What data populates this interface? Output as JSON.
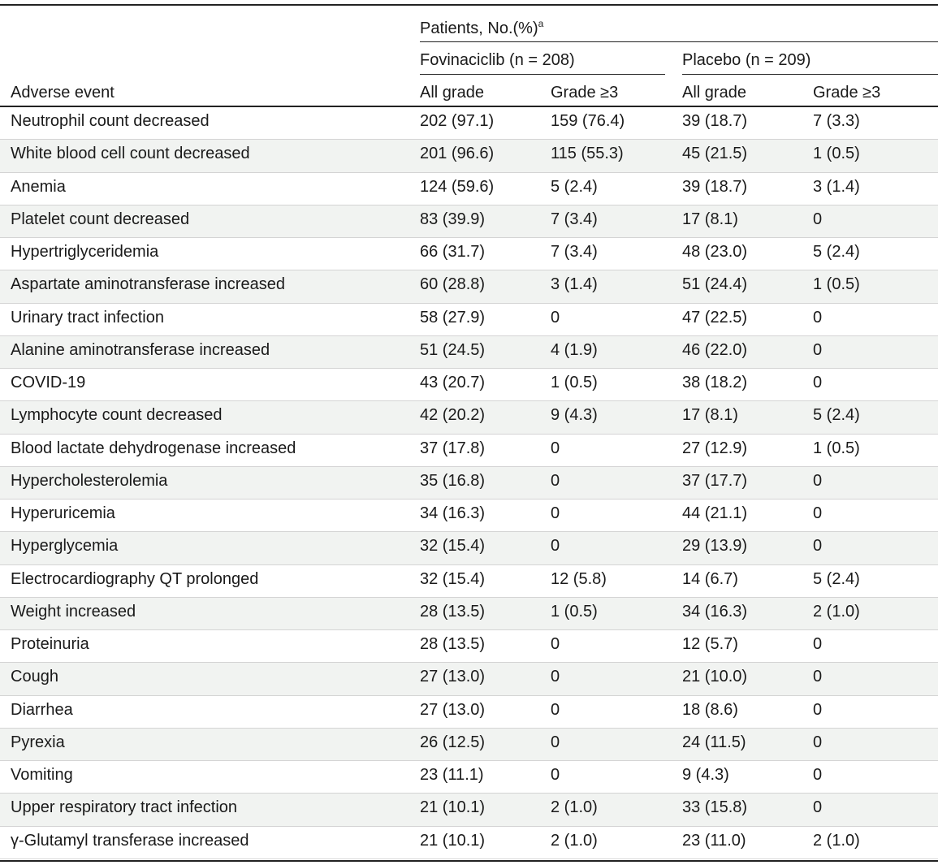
{
  "header": {
    "group_label": "Patients, No.(%)",
    "group_footnote": "a",
    "arm1_label": "Fovinaciclib (n = 208)",
    "arm2_label": "Placebo (n = 209)",
    "rowhead_label": "Adverse event",
    "col_all_grade_1": "All grade",
    "col_grade3_1": "Grade ≥3",
    "col_all_grade_2": "All grade",
    "col_grade3_2": "Grade ≥3"
  },
  "rows": [
    [
      "Neutrophil count decreased",
      "202 (97.1)",
      "159 (76.4)",
      "39 (18.7)",
      "7 (3.3)"
    ],
    [
      "White blood cell count decreased",
      "201 (96.6)",
      "115 (55.3)",
      "45 (21.5)",
      "1 (0.5)"
    ],
    [
      "Anemia",
      "124 (59.6)",
      "5 (2.4)",
      "39 (18.7)",
      "3 (1.4)"
    ],
    [
      "Platelet count decreased",
      "83 (39.9)",
      "7 (3.4)",
      "17 (8.1)",
      "0"
    ],
    [
      "Hypertriglyceridemia",
      "66 (31.7)",
      "7 (3.4)",
      "48 (23.0)",
      "5 (2.4)"
    ],
    [
      "Aspartate aminotransferase increased",
      "60 (28.8)",
      "3 (1.4)",
      "51 (24.4)",
      "1 (0.5)"
    ],
    [
      "Urinary tract infection",
      "58 (27.9)",
      "0",
      "47 (22.5)",
      "0"
    ],
    [
      "Alanine aminotransferase increased",
      "51 (24.5)",
      "4 (1.9)",
      "46 (22.0)",
      "0"
    ],
    [
      "COVID-19",
      "43 (20.7)",
      "1 (0.5)",
      "38 (18.2)",
      "0"
    ],
    [
      "Lymphocyte count decreased",
      "42 (20.2)",
      "9 (4.3)",
      "17 (8.1)",
      "5 (2.4)"
    ],
    [
      "Blood lactate dehydrogenase increased",
      "37 (17.8)",
      "0",
      "27 (12.9)",
      "1 (0.5)"
    ],
    [
      "Hypercholesterolemia",
      "35 (16.8)",
      "0",
      "37 (17.7)",
      "0"
    ],
    [
      "Hyperuricemia",
      "34 (16.3)",
      "0",
      "44 (21.1)",
      "0"
    ],
    [
      "Hyperglycemia",
      "32 (15.4)",
      "0",
      "29 (13.9)",
      "0"
    ],
    [
      "Electrocardiography QT prolonged",
      "32 (15.4)",
      "12 (5.8)",
      "14 (6.7)",
      "5 (2.4)"
    ],
    [
      "Weight increased",
      "28 (13.5)",
      "1 (0.5)",
      "34 (16.3)",
      "2 (1.0)"
    ],
    [
      "Proteinuria",
      "28 (13.5)",
      "0",
      "12 (5.7)",
      "0"
    ],
    [
      "Cough",
      "27 (13.0)",
      "0",
      "21 (10.0)",
      "0"
    ],
    [
      "Diarrhea",
      "27 (13.0)",
      "0",
      "18 (8.6)",
      "0"
    ],
    [
      "Pyrexia",
      "26 (12.5)",
      "0",
      "24 (11.5)",
      "0"
    ],
    [
      "Vomiting",
      "23 (11.1)",
      "0",
      "9 (4.3)",
      "0"
    ],
    [
      "Upper respiratory tract infection",
      "21 (10.1)",
      "2 (1.0)",
      "33 (15.8)",
      "0"
    ],
    [
      "γ-Glutamyl transferase increased",
      "21 (10.1)",
      "2 (1.0)",
      "23 (11.0)",
      "2 (1.0)"
    ]
  ],
  "colors": {
    "alt_row": "#f1f3f1",
    "rule": "#222222",
    "row_divider": "#d4d4d4"
  }
}
